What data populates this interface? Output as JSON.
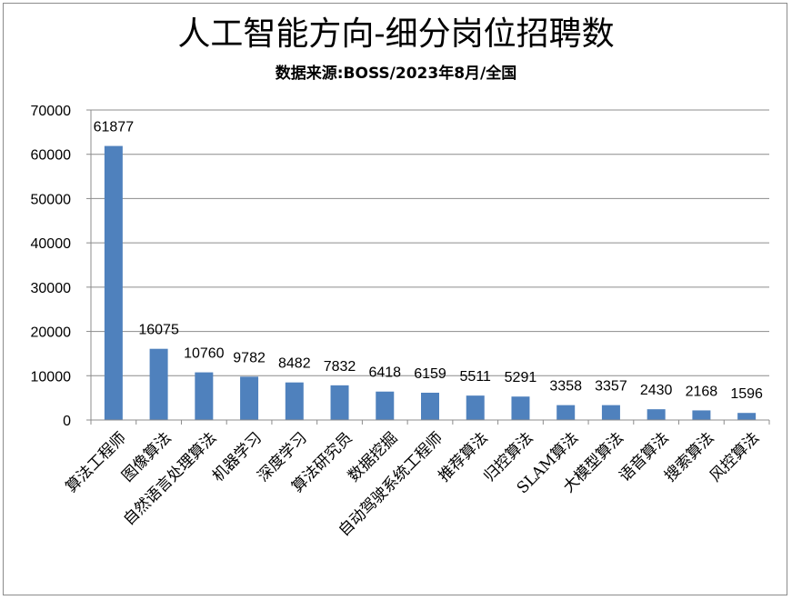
{
  "chart_data": {
    "type": "bar",
    "title": "人工智能方向-细分岗位招聘数",
    "subtitle": "数据来源:BOSS/2023年8月/全国",
    "xlabel": "",
    "ylabel": "",
    "categories": [
      "算法工程师",
      "图像算法",
      "自然语言处理算法",
      "机器学习",
      "深度学习",
      "算法研究员",
      "数据挖掘",
      "自动驾驶系统工程师",
      "推荐算法",
      "归控算法",
      "SLAM算法",
      "大模型算法",
      "语音算法",
      "搜索算法",
      "风控算法"
    ],
    "values": [
      61877,
      16075,
      10760,
      9782,
      8482,
      7832,
      6418,
      6159,
      5511,
      5291,
      3358,
      3357,
      2430,
      2168,
      1596
    ],
    "ylim": [
      0,
      70000
    ],
    "yticks": [
      0,
      10000,
      20000,
      30000,
      40000,
      50000,
      60000,
      70000
    ],
    "grid": true,
    "legend": "none",
    "bar_color": "#4f81bd"
  }
}
